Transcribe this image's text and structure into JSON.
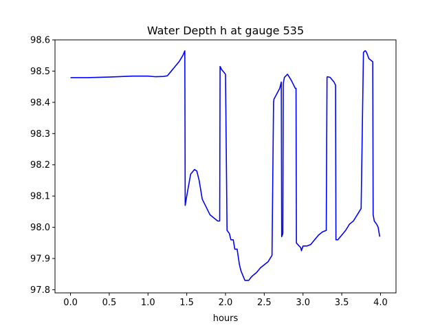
{
  "chart_data": {
    "type": "line",
    "title": "Water Depth h at gauge 535",
    "xlabel": "hours",
    "ylabel": "",
    "xlim": [
      -0.2,
      4.2
    ],
    "ylim": [
      97.79,
      98.6
    ],
    "grid": false,
    "legend": "none",
    "xticks": [
      0.0,
      0.5,
      1.0,
      1.5,
      2.0,
      2.5,
      3.0,
      3.5,
      4.0
    ],
    "xtick_labels": [
      "0.0",
      "0.5",
      "1.0",
      "1.5",
      "2.0",
      "2.5",
      "3.0",
      "3.5",
      "4.0"
    ],
    "yticks": [
      97.8,
      97.9,
      98.0,
      98.1,
      98.2,
      98.3,
      98.4,
      98.5,
      98.6
    ],
    "ytick_labels": [
      "97.8",
      "97.9",
      "98.0",
      "98.1",
      "98.2",
      "98.3",
      "98.4",
      "98.5",
      "98.6"
    ],
    "series": [
      {
        "color": "#0000ff",
        "x": [
          0.0,
          0.2,
          0.5,
          0.8,
          1.0,
          1.1,
          1.2,
          1.25,
          1.3,
          1.35,
          1.4,
          1.45,
          1.475,
          1.48,
          1.5,
          1.55,
          1.6,
          1.63,
          1.66,
          1.7,
          1.75,
          1.8,
          1.85,
          1.9,
          1.925,
          1.93,
          1.95,
          2.0,
          2.02,
          2.05,
          2.07,
          2.1,
          2.12,
          2.15,
          2.18,
          2.2,
          2.25,
          2.3,
          2.33,
          2.35,
          2.4,
          2.45,
          2.5,
          2.55,
          2.6,
          2.62,
          2.625,
          2.7,
          2.72,
          2.725,
          2.74,
          2.745,
          2.76,
          2.8,
          2.85,
          2.9,
          2.91,
          2.915,
          2.95,
          2.97,
          2.98,
          3.0,
          3.03,
          3.05,
          3.1,
          3.15,
          3.2,
          3.25,
          3.3,
          3.31,
          3.315,
          3.35,
          3.4,
          3.42,
          3.425,
          3.45,
          3.5,
          3.55,
          3.6,
          3.65,
          3.7,
          3.75,
          3.78,
          3.8,
          3.805,
          3.82,
          3.85,
          3.9,
          3.905,
          3.92,
          3.95,
          3.97,
          3.99
        ],
        "y": [
          98.479,
          98.479,
          98.481,
          98.484,
          98.484,
          98.482,
          98.483,
          98.485,
          98.5,
          98.515,
          98.53,
          98.55,
          98.565,
          98.07,
          98.1,
          98.17,
          98.185,
          98.18,
          98.15,
          98.09,
          98.065,
          98.04,
          98.03,
          98.02,
          98.02,
          98.515,
          98.505,
          98.49,
          97.99,
          97.98,
          97.96,
          97.96,
          97.93,
          97.93,
          97.88,
          97.86,
          97.83,
          97.83,
          97.84,
          97.845,
          97.855,
          97.87,
          97.88,
          97.89,
          97.91,
          98.4,
          98.41,
          98.445,
          98.465,
          97.97,
          97.98,
          98.46,
          98.48,
          98.49,
          98.47,
          98.445,
          98.445,
          97.95,
          97.94,
          97.935,
          97.925,
          97.94,
          97.94,
          97.94,
          97.945,
          97.96,
          97.975,
          97.985,
          97.99,
          98.48,
          98.482,
          98.48,
          98.465,
          98.455,
          97.96,
          97.96,
          97.975,
          97.99,
          98.01,
          98.02,
          98.04,
          98.06,
          98.56,
          98.565,
          98.565,
          98.56,
          98.54,
          98.53,
          98.04,
          98.02,
          98.01,
          98.0,
          97.97
        ]
      }
    ]
  }
}
